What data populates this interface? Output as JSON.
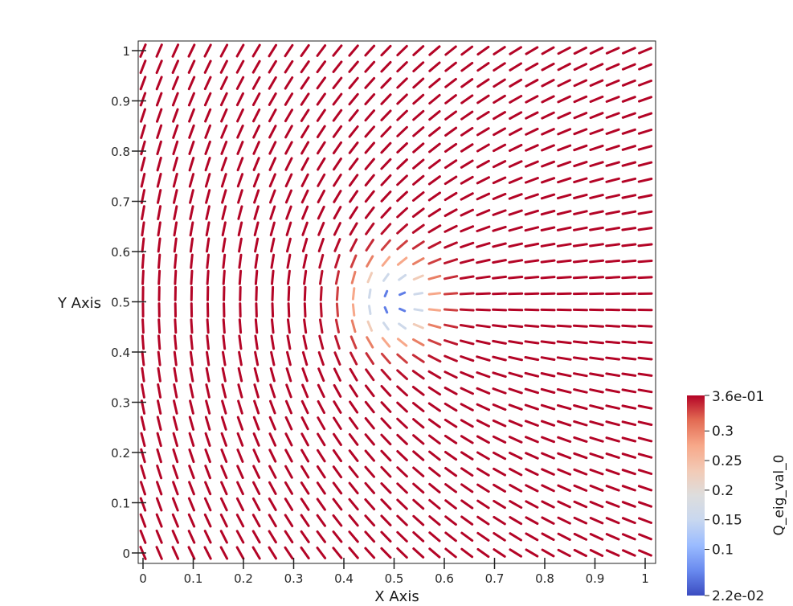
{
  "chart_data": {
    "type": "scatter",
    "title": "",
    "xlabel": "X Axis",
    "ylabel": "Y Axis",
    "xlim": [
      0,
      1
    ],
    "ylim": [
      0,
      1
    ],
    "x_ticks": [
      "0",
      "0.1",
      "0.2",
      "0.3",
      "0.4",
      "0.5",
      "0.6",
      "0.7",
      "0.8",
      "0.9",
      "1"
    ],
    "y_ticks": [
      "0",
      "0.1",
      "0.2",
      "0.3",
      "0.4",
      "0.5",
      "0.6",
      "0.7",
      "0.8",
      "0.9",
      "1"
    ],
    "grid": false,
    "glyph": "director line segments on a uniform grid",
    "defect": {
      "x": 0.5,
      "y": 0.5,
      "charge": 0.5
    },
    "grid_n": 32,
    "colorbar": {
      "title": "Q_eig_val_0",
      "min_label": "2.2e-02",
      "max_label": "3.6e-01",
      "tick_labels": [
        "0.3",
        "0.25",
        "0.2",
        "0.15",
        "0.1"
      ],
      "min": 0.022,
      "max": 0.36,
      "ticks": [
        0.3,
        0.25,
        0.2,
        0.15,
        0.1
      ],
      "colors": [
        "#3b4cc0",
        "#dddddd",
        "#b40426"
      ],
      "placement": "right-bottom"
    }
  }
}
